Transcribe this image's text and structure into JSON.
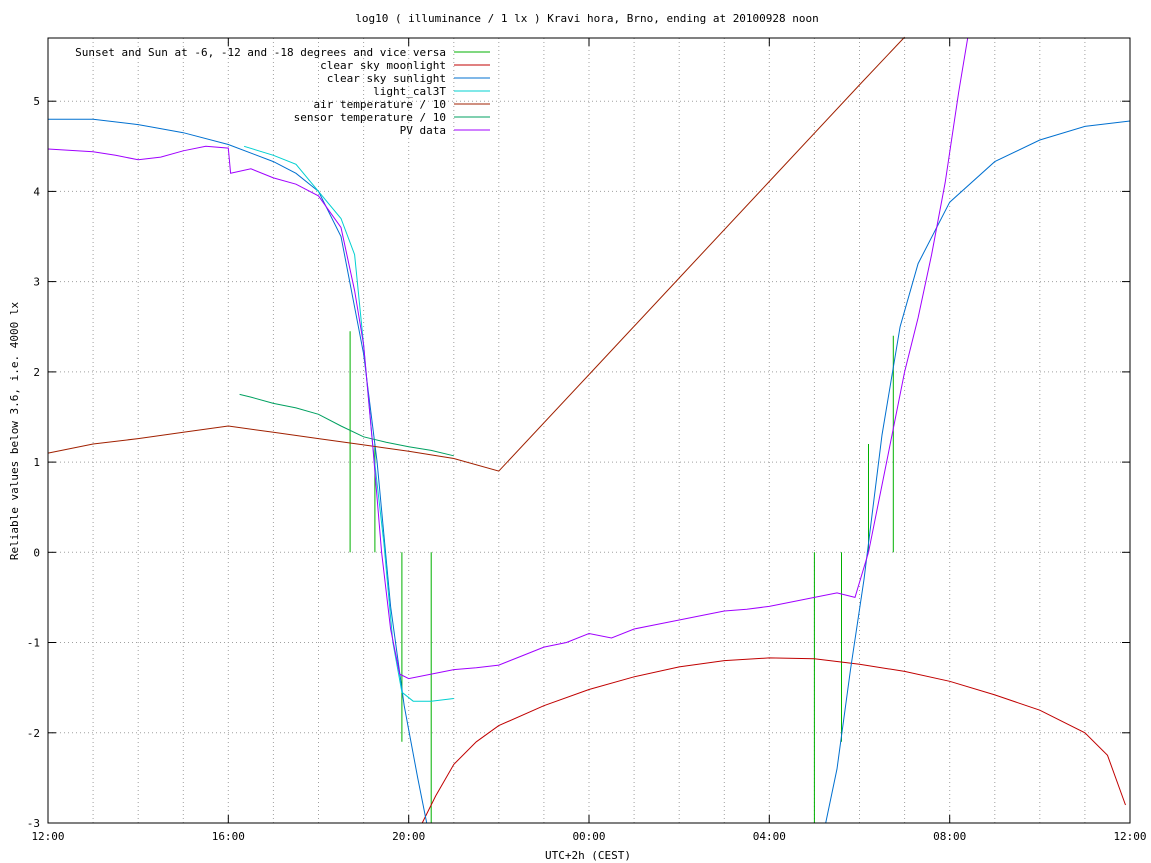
{
  "chart_data": {
    "type": "line",
    "title": "log10 ( illuminance / 1 lx ) Kravi hora, Brno, ending at 20100928 noon",
    "xlabel": "UTC+2h (CEST)",
    "ylabel": "Reliable values below 3.6, i.e. 4000 lx",
    "xlim": [
      0,
      24
    ],
    "ylim": [
      -3,
      5.7
    ],
    "x_unit": "hours after 12:00",
    "grid": true,
    "legend_position": "top-left",
    "x_ticks": [
      {
        "value": 0,
        "label": "12:00"
      },
      {
        "value": 4,
        "label": "16:00"
      },
      {
        "value": 8,
        "label": "20:00"
      },
      {
        "value": 12,
        "label": "00:00"
      },
      {
        "value": 16,
        "label": "04:00"
      },
      {
        "value": 20,
        "label": "08:00"
      },
      {
        "value": 24,
        "label": "12:00"
      }
    ],
    "x_minor_step": 1,
    "y_ticks": [
      {
        "value": -3,
        "label": "-3"
      },
      {
        "value": -2,
        "label": "-2"
      },
      {
        "value": -1,
        "label": "-1"
      },
      {
        "value": 0,
        "label": "0"
      },
      {
        "value": 1,
        "label": "1"
      },
      {
        "value": 2,
        "label": "2"
      },
      {
        "value": 3,
        "label": "3"
      },
      {
        "value": 4,
        "label": "4"
      },
      {
        "value": 5,
        "label": "5"
      }
    ],
    "series": [
      {
        "name": "Sunset and Sun at -6, -12 and -18 degrees and vice versa",
        "color": "#00b000",
        "style": "vlines",
        "segments": [
          {
            "x": 6.7,
            "y0": 0,
            "y1": 2.45
          },
          {
            "x": 7.25,
            "y0": 0,
            "y1": 1.2
          },
          {
            "x": 7.85,
            "y0": -2.1,
            "y1": 0
          },
          {
            "x": 8.5,
            "y0": -3,
            "y1": 0
          },
          {
            "x": 17.0,
            "y0": -3,
            "y1": 0
          },
          {
            "x": 17.6,
            "y0": -2.1,
            "y1": 0
          },
          {
            "x": 18.2,
            "y0": 0,
            "y1": 1.2
          },
          {
            "x": 18.75,
            "y0": 0,
            "y1": 2.4
          }
        ]
      },
      {
        "name": "clear sky moonlight",
        "color": "#c00000",
        "points": [
          [
            8.3,
            -3
          ],
          [
            8.6,
            -2.7
          ],
          [
            9.0,
            -2.35
          ],
          [
            9.5,
            -2.1
          ],
          [
            10,
            -1.92
          ],
          [
            11,
            -1.7
          ],
          [
            12,
            -1.52
          ],
          [
            13,
            -1.38
          ],
          [
            14,
            -1.27
          ],
          [
            15,
            -1.2
          ],
          [
            16,
            -1.17
          ],
          [
            17,
            -1.18
          ],
          [
            18,
            -1.24
          ],
          [
            19,
            -1.32
          ],
          [
            20,
            -1.43
          ],
          [
            21,
            -1.58
          ],
          [
            22,
            -1.75
          ],
          [
            23,
            -2.0
          ],
          [
            23.5,
            -2.25
          ],
          [
            23.9,
            -2.8
          ]
        ]
      },
      {
        "name": "clear sky sunlight",
        "color": "#0070d0",
        "points": [
          [
            0,
            4.8
          ],
          [
            1,
            4.8
          ],
          [
            2,
            4.74
          ],
          [
            3,
            4.65
          ],
          [
            4,
            4.52
          ],
          [
            5,
            4.33
          ],
          [
            5.5,
            4.2
          ],
          [
            6,
            4.0
          ],
          [
            6.5,
            3.5
          ],
          [
            7.0,
            2.2
          ],
          [
            7.3,
            1.0
          ],
          [
            7.6,
            -0.6
          ],
          [
            7.9,
            -1.7
          ],
          [
            8.2,
            -2.5
          ],
          [
            8.4,
            -3
          ],
          [
            17.25,
            -3
          ],
          [
            17.5,
            -2.4
          ],
          [
            17.8,
            -1.3
          ],
          [
            18.1,
            -0.3
          ],
          [
            18.5,
            1.3
          ],
          [
            18.9,
            2.5
          ],
          [
            19.3,
            3.2
          ],
          [
            20,
            3.88
          ],
          [
            21,
            4.33
          ],
          [
            22,
            4.57
          ],
          [
            23,
            4.72
          ],
          [
            24,
            4.78
          ]
        ]
      },
      {
        "name": "light_cal3T",
        "color": "#00d0d0",
        "points": [
          [
            4.35,
            4.5
          ],
          [
            5,
            4.4
          ],
          [
            5.5,
            4.3
          ],
          [
            6,
            4.0
          ],
          [
            6.5,
            3.7
          ],
          [
            6.8,
            3.3
          ],
          [
            7.0,
            2.3
          ],
          [
            7.2,
            1.2
          ],
          [
            7.45,
            0.1
          ],
          [
            7.65,
            -1.0
          ],
          [
            7.85,
            -1.55
          ],
          [
            8.1,
            -1.65
          ],
          [
            8.5,
            -1.65
          ],
          [
            9.0,
            -1.62
          ]
        ]
      },
      {
        "name": "air temperature / 10",
        "color": "#a02000",
        "points": [
          [
            0,
            1.1
          ],
          [
            1,
            1.2
          ],
          [
            2,
            1.26
          ],
          [
            3,
            1.33
          ],
          [
            4,
            1.4
          ],
          [
            5,
            1.33
          ],
          [
            6,
            1.26
          ],
          [
            7,
            1.19
          ],
          [
            8,
            1.12
          ],
          [
            9,
            1.04
          ],
          [
            10,
            0.9
          ],
          [
            12,
            1.97
          ],
          [
            14,
            3.04
          ],
          [
            16,
            4.11
          ],
          [
            18,
            5.18
          ],
          [
            19,
            5.71
          ]
        ]
      },
      {
        "name": "sensor temperature / 10",
        "color": "#00a060",
        "points": [
          [
            4.25,
            1.75
          ],
          [
            4.5,
            1.72
          ],
          [
            5,
            1.65
          ],
          [
            5.5,
            1.6
          ],
          [
            6,
            1.53
          ],
          [
            6.5,
            1.4
          ],
          [
            7,
            1.28
          ],
          [
            7.5,
            1.22
          ],
          [
            8,
            1.17
          ],
          [
            8.5,
            1.13
          ],
          [
            9,
            1.07
          ]
        ]
      },
      {
        "name": "PV data",
        "color": "#a000ff",
        "points": [
          [
            0,
            4.47
          ],
          [
            1,
            4.44
          ],
          [
            1.5,
            4.4
          ],
          [
            2,
            4.35
          ],
          [
            2.5,
            4.38
          ],
          [
            3,
            4.45
          ],
          [
            3.5,
            4.5
          ],
          [
            4,
            4.48
          ],
          [
            4.05,
            4.2
          ],
          [
            4.5,
            4.25
          ],
          [
            5,
            4.15
          ],
          [
            5.5,
            4.08
          ],
          [
            6,
            3.95
          ],
          [
            6.5,
            3.6
          ],
          [
            6.8,
            2.9
          ],
          [
            7.0,
            2.3
          ],
          [
            7.2,
            1.2
          ],
          [
            7.4,
            0.0
          ],
          [
            7.6,
            -0.85
          ],
          [
            7.8,
            -1.35
          ],
          [
            8.0,
            -1.4
          ],
          [
            8.5,
            -1.35
          ],
          [
            9,
            -1.3
          ],
          [
            9.5,
            -1.28
          ],
          [
            10,
            -1.25
          ],
          [
            10.5,
            -1.15
          ],
          [
            11,
            -1.05
          ],
          [
            11.5,
            -1.0
          ],
          [
            12,
            -0.9
          ],
          [
            12.5,
            -0.95
          ],
          [
            13,
            -0.85
          ],
          [
            13.5,
            -0.8
          ],
          [
            14,
            -0.75
          ],
          [
            14.5,
            -0.7
          ],
          [
            15,
            -0.65
          ],
          [
            15.5,
            -0.63
          ],
          [
            16,
            -0.6
          ],
          [
            16.5,
            -0.55
          ],
          [
            17,
            -0.5
          ],
          [
            17.5,
            -0.45
          ],
          [
            17.9,
            -0.5
          ],
          [
            18.2,
            0.0
          ],
          [
            18.6,
            1.0
          ],
          [
            19.0,
            2.0
          ],
          [
            19.3,
            2.6
          ],
          [
            19.6,
            3.3
          ],
          [
            19.9,
            4.1
          ],
          [
            20.2,
            5.1
          ],
          [
            20.4,
            5.7
          ]
        ]
      }
    ]
  }
}
